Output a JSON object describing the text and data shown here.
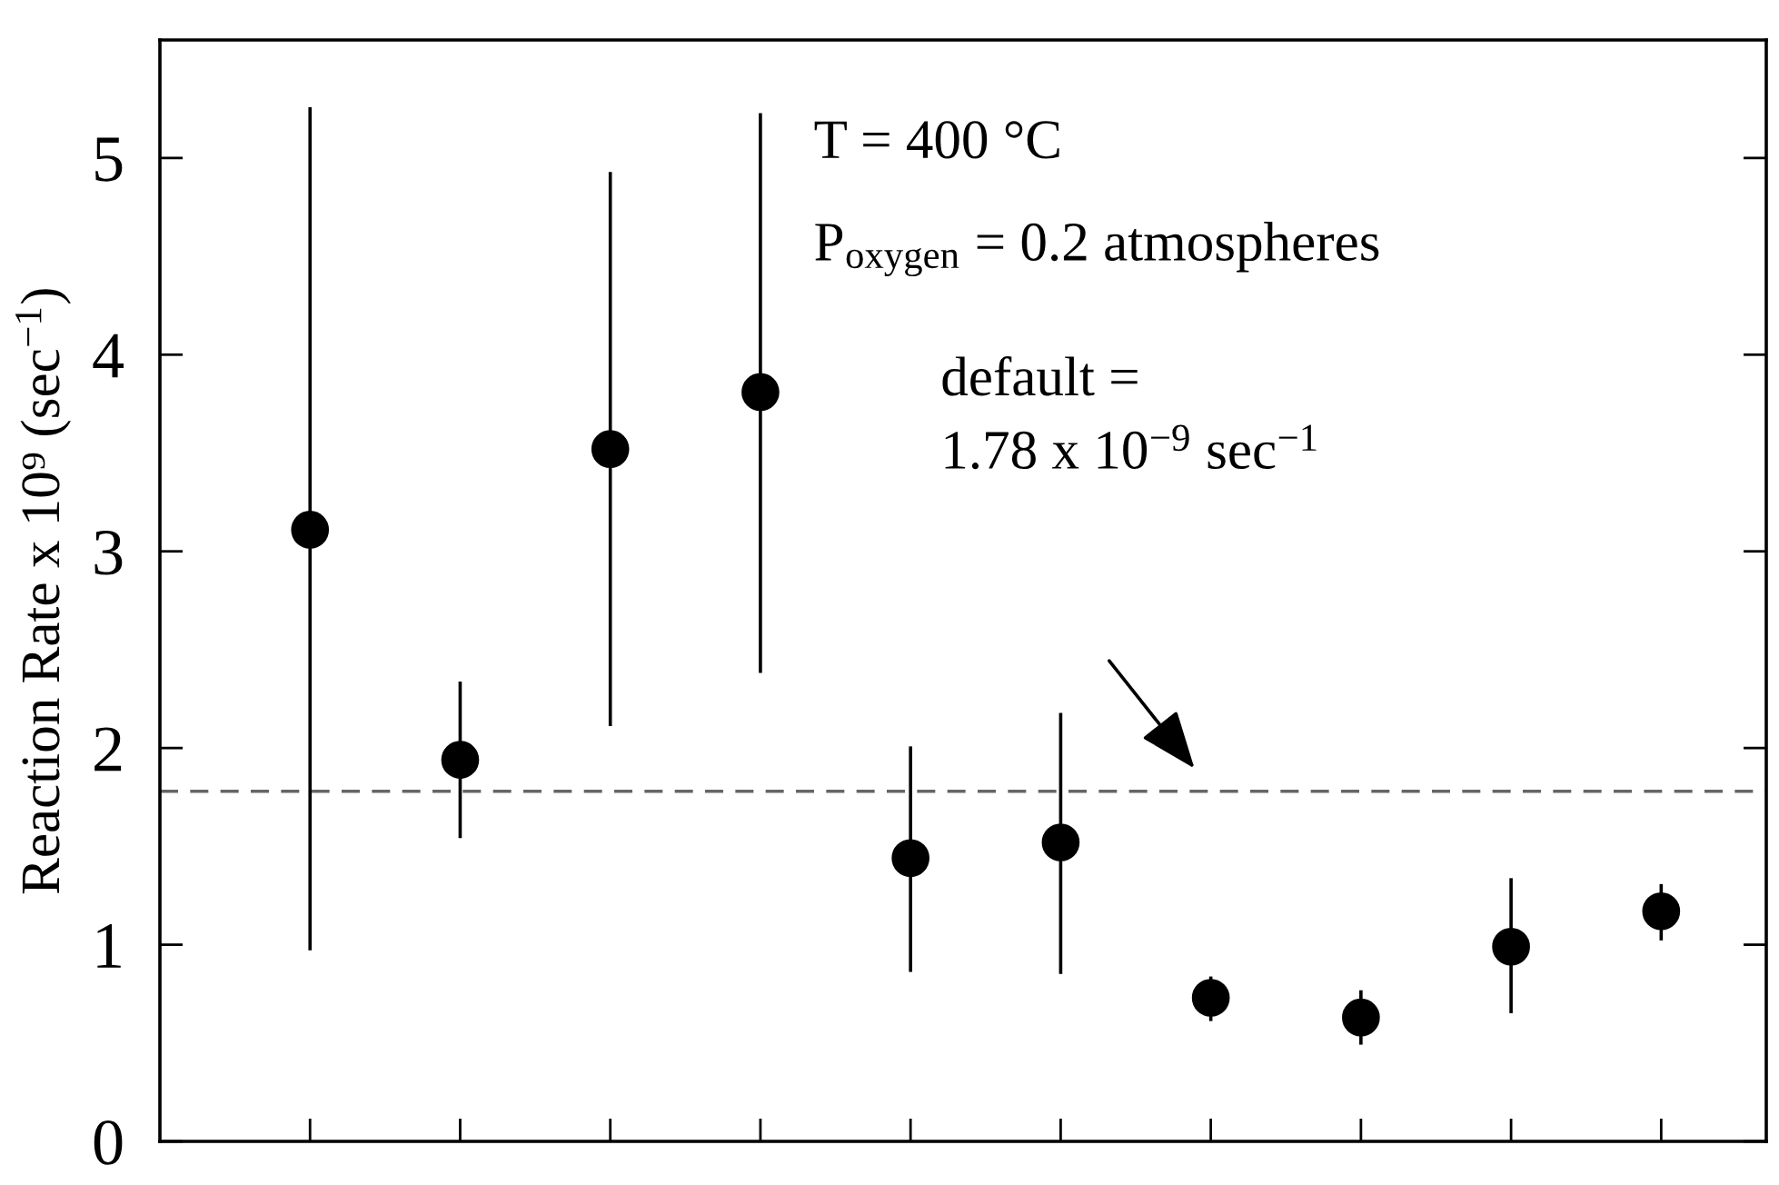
{
  "chart_data": {
    "type": "scatter",
    "ylabel": "Reaction Rate x 10⁹ (sec$^{−1}$)",
    "categories": [
      null,
      null,
      null,
      null,
      null,
      null,
      null,
      null,
      null,
      null
    ],
    "series": [
      {
        "color": "#000000",
        "values": [
          3.11,
          1.94,
          3.52,
          3.81,
          1.44,
          1.52,
          0.73,
          0.63,
          0.99,
          1.17
        ],
        "errors": [
          [
            0.98,
            5.25
          ],
          [
            1.55,
            2.33
          ],
          [
            2.12,
            4.92
          ],
          [
            2.39,
            5.22
          ],
          [
            0.87,
            2.0
          ],
          [
            0.86,
            2.17
          ],
          [
            0.62,
            0.83
          ],
          [
            0.5,
            0.76
          ],
          [
            0.66,
            1.33
          ],
          [
            1.03,
            1.3
          ]
        ]
      }
    ],
    "ylim": [
      0,
      5.6
    ],
    "yticks": [
      0,
      1,
      2,
      3,
      4,
      5
    ],
    "marker": "circle",
    "grid": false,
    "legend": false,
    "ref_lines": [
      {
        "axis": "y",
        "value": 1.78,
        "color": "#666666",
        "line_style": "dashed"
      }
    ],
    "annotations": [
      "T = 400 °C",
      "P$_{oxygen}$ = 0.2 atmospheres",
      "default =\n1.78 x 10$^{−9}$ sec$^{−1}$"
    ]
  }
}
